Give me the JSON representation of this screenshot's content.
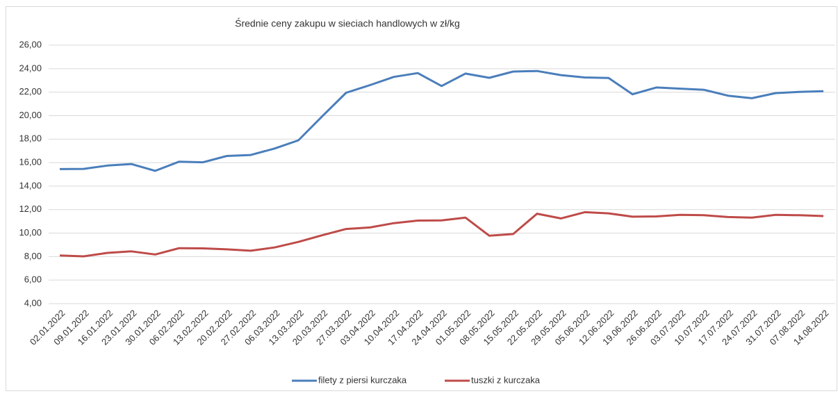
{
  "chart_data": {
    "type": "line",
    "title": "Średnie ceny zakupu w sieciach handlowych w zł/kg",
    "categories": [
      "02.01.2022",
      "09.01.2022",
      "16.01.2022",
      "23.01.2022",
      "30.01.2022",
      "06.02.2022",
      "13.02.2022",
      "20.02.2022",
      "27.02.2022",
      "06.03.2022",
      "13.03.2022",
      "20.03.2022",
      "27.03.2022",
      "03.04.2022",
      "10.04.2022",
      "17.04.2022",
      "24.04.2022",
      "01.05.2022",
      "08.05.2022",
      "15.05.2022",
      "22.05.2022",
      "29.05.2022",
      "05.06.2022",
      "12.06.2022",
      "19.06.2022",
      "26.06.2022",
      "03.07.2022",
      "10.07.2022",
      "17.07.2022",
      "24.07.2022",
      "31.07.2022",
      "07.08.2022",
      "14.08.2022"
    ],
    "series": [
      {
        "name": "filety z piersi kurczaka",
        "color": "#4a7ebb",
        "values": [
          15.45,
          15.47,
          15.75,
          15.88,
          15.3,
          16.08,
          16.03,
          16.57,
          16.65,
          17.2,
          17.9,
          19.95,
          21.95,
          22.6,
          23.3,
          23.62,
          22.52,
          23.58,
          23.22,
          23.75,
          23.8,
          23.45,
          23.25,
          23.2,
          21.82,
          22.4,
          22.3,
          22.2,
          21.7,
          21.48,
          21.92,
          22.02,
          22.08
        ]
      },
      {
        "name": "tuszki  z kurczaka",
        "color": "#be4b48",
        "values": [
          8.1,
          8.02,
          8.32,
          8.45,
          8.18,
          8.72,
          8.7,
          8.62,
          8.5,
          8.78,
          9.25,
          9.82,
          10.35,
          10.48,
          10.85,
          11.07,
          11.08,
          11.32,
          9.78,
          9.92,
          11.65,
          11.25,
          11.78,
          11.68,
          11.4,
          11.42,
          11.55,
          11.52,
          11.37,
          11.32,
          11.55,
          11.52,
          11.45
        ]
      }
    ],
    "ylim": [
      4,
      26
    ],
    "yticks": [
      {
        "value": 4,
        "label": "4,00"
      },
      {
        "value": 6,
        "label": "6,00"
      },
      {
        "value": 8,
        "label": "8,00"
      },
      {
        "value": 10,
        "label": "10,00"
      },
      {
        "value": 12,
        "label": "12,00"
      },
      {
        "value": 14,
        "label": "14,00"
      },
      {
        "value": 16,
        "label": "16,00"
      },
      {
        "value": 18,
        "label": "18,00"
      },
      {
        "value": 20,
        "label": "20,00"
      },
      {
        "value": 22,
        "label": "22,00"
      },
      {
        "value": 24,
        "label": "24,00"
      },
      {
        "value": 26,
        "label": "26,00"
      }
    ],
    "grid": true,
    "legend": "bottom"
  }
}
